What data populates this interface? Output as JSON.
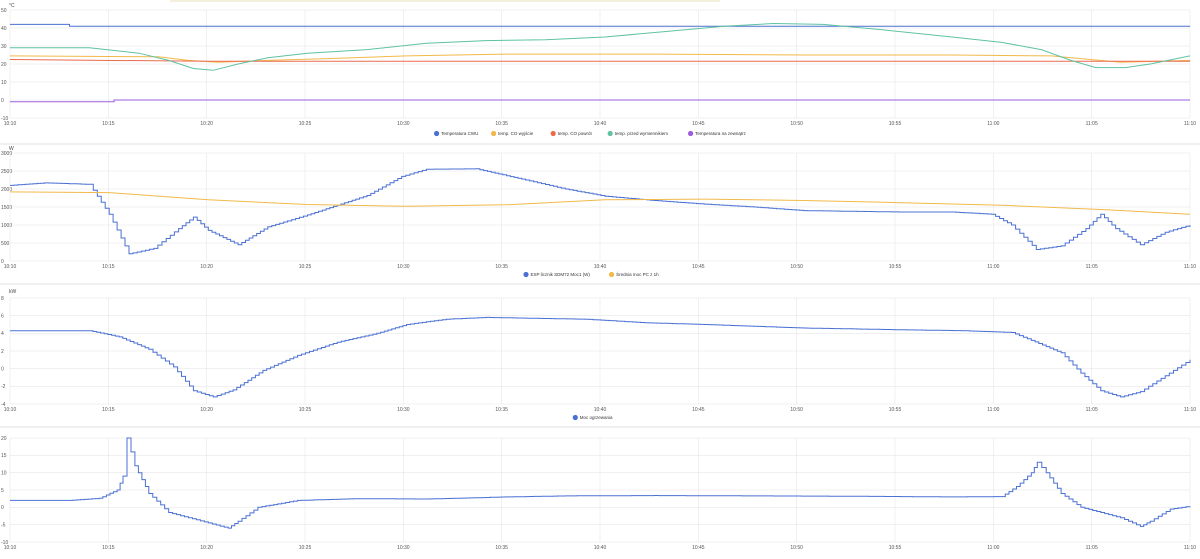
{
  "colors": {
    "blue": "#4b70d3",
    "orange": "#f2b94a",
    "red": "#ec6a4c",
    "teal": "#5fc2a1",
    "purple": "#9b5ce0"
  },
  "chart_data": [
    {
      "type": "line",
      "unit": "°C",
      "ylim": [
        -10,
        50
      ],
      "y_ticks": [
        "50",
        "40",
        "30",
        "20",
        "10",
        "0",
        "-10"
      ],
      "x_ticks": [
        "10:10",
        "10:15",
        "10:20",
        "10:25",
        "10:30",
        "10:35",
        "10:40",
        "10:45",
        "10:50",
        "10:55",
        "11:00",
        "11:05",
        "11:10"
      ],
      "grid": true,
      "legend": "bottom",
      "series": [
        {
          "name": "Temperatura CWU",
          "color": "#4b70d3",
          "step": true,
          "points": [
            [
              0,
              42
            ],
            [
              60,
              42
            ],
            [
              60,
              41
            ],
            [
              1190,
              41
            ]
          ]
        },
        {
          "name": "temp. CO wyjście",
          "color": "#f2b94a",
          "points": [
            [
              0,
              24.5
            ],
            [
              150,
              24
            ],
            [
              180,
              22
            ],
            [
              210,
              21
            ],
            [
              260,
              22
            ],
            [
              320,
              23
            ],
            [
              400,
              24.5
            ],
            [
              500,
              25.5
            ],
            [
              650,
              25.5
            ],
            [
              800,
              25
            ],
            [
              950,
              25
            ],
            [
              1050,
              24.5
            ],
            [
              1080,
              23
            ],
            [
              1120,
              21
            ],
            [
              1190,
              22
            ]
          ]
        },
        {
          "name": "temp. CO powrót",
          "color": "#ec6a4c",
          "points": [
            [
              0,
              22.5
            ],
            [
              200,
              21.5
            ],
            [
              400,
              21.5
            ],
            [
              700,
              21.5
            ],
            [
              1000,
              21.5
            ],
            [
              1190,
              21.5
            ]
          ]
        },
        {
          "name": "temp. przed wymiennikiem",
          "color": "#5fc2a1",
          "points": [
            [
              0,
              29
            ],
            [
              80,
              29
            ],
            [
              130,
              26
            ],
            [
              160,
              22
            ],
            [
              185,
              17.5
            ],
            [
              205,
              16.5
            ],
            [
              230,
              20
            ],
            [
              260,
              23.5
            ],
            [
              300,
              26
            ],
            [
              360,
              28
            ],
            [
              420,
              31.5
            ],
            [
              480,
              33
            ],
            [
              540,
              33.5
            ],
            [
              600,
              35
            ],
            [
              660,
              38
            ],
            [
              720,
              41
            ],
            [
              770,
              42.5
            ],
            [
              820,
              42
            ],
            [
              880,
              39
            ],
            [
              950,
              35
            ],
            [
              1000,
              32
            ],
            [
              1040,
              28
            ],
            [
              1070,
              22
            ],
            [
              1095,
              18
            ],
            [
              1125,
              18
            ],
            [
              1150,
              20
            ],
            [
              1190,
              24.5
            ]
          ]
        },
        {
          "name": "Temperatura na zewnątrz",
          "color": "#9b5ce0",
          "step": true,
          "points": [
            [
              0,
              -1
            ],
            [
              105,
              -1
            ],
            [
              105,
              0
            ],
            [
              1190,
              0
            ]
          ]
        }
      ]
    },
    {
      "type": "line",
      "unit": "W",
      "ylim": [
        0,
        3000
      ],
      "y_ticks": [
        "3000",
        "2500",
        "2000",
        "1500",
        "1000",
        "500",
        "0"
      ],
      "x_ticks": [
        "10:10",
        "10:15",
        "10:20",
        "10:25",
        "10:30",
        "10:35",
        "10:40",
        "10:45",
        "10:50",
        "10:55",
        "11:00",
        "11:05",
        "11:10"
      ],
      "grid": true,
      "legend": "bottom",
      "series": [
        {
          "name": "ESP licznik SDM72 Moc1 (W)",
          "color": "#4b70d3",
          "step": true,
          "points": [
            [
              0,
              2100
            ],
            [
              35,
              2170
            ],
            [
              80,
              2130
            ],
            [
              100,
              1300
            ],
            [
              120,
              200
            ],
            [
              145,
              350
            ],
            [
              170,
              900
            ],
            [
              185,
              1220
            ],
            [
              200,
              850
            ],
            [
              230,
              450
            ],
            [
              260,
              950
            ],
            [
              300,
              1280
            ],
            [
              330,
              1550
            ],
            [
              360,
              1820
            ],
            [
              395,
              2350
            ],
            [
              420,
              2550
            ],
            [
              470,
              2560
            ],
            [
              520,
              2250
            ],
            [
              560,
              2000
            ],
            [
              600,
              1800
            ],
            [
              650,
              1680
            ],
            [
              700,
              1580
            ],
            [
              750,
              1500
            ],
            [
              800,
              1400
            ],
            [
              850,
              1380
            ],
            [
              900,
              1360
            ],
            [
              950,
              1360
            ],
            [
              990,
              1300
            ],
            [
              1010,
              1000
            ],
            [
              1035,
              320
            ],
            [
              1060,
              420
            ],
            [
              1085,
              900
            ],
            [
              1100,
              1300
            ],
            [
              1115,
              900
            ],
            [
              1140,
              450
            ],
            [
              1165,
              800
            ],
            [
              1190,
              1000
            ]
          ]
        },
        {
          "name": "Średnia moc PC z 1h",
          "color": "#f2b94a",
          "points": [
            [
              0,
              1920
            ],
            [
              100,
              1900
            ],
            [
              200,
              1700
            ],
            [
              300,
              1570
            ],
            [
              400,
              1520
            ],
            [
              500,
              1560
            ],
            [
              600,
              1700
            ],
            [
              700,
              1720
            ],
            [
              800,
              1680
            ],
            [
              900,
              1620
            ],
            [
              1000,
              1550
            ],
            [
              1100,
              1430
            ],
            [
              1190,
              1300
            ]
          ]
        }
      ]
    },
    {
      "type": "line",
      "unit": "kW",
      "ylim": [
        -4,
        8
      ],
      "y_ticks": [
        "8",
        "6",
        "4",
        "2",
        "0",
        "-2",
        "-4"
      ],
      "x_ticks": [
        "10:10",
        "10:15",
        "10:20",
        "10:25",
        "10:30",
        "10:35",
        "10:40",
        "10:45",
        "10:50",
        "10:55",
        "11:00",
        "11:05",
        "11:10"
      ],
      "grid": true,
      "legend": "bottom",
      "series": [
        {
          "name": "Moc ogrzewania",
          "color": "#4b70d3",
          "step": true,
          "points": [
            [
              0,
              4.3
            ],
            [
              80,
              4.3
            ],
            [
              110,
              3.6
            ],
            [
              140,
              2.2
            ],
            [
              165,
              0.2
            ],
            [
              185,
              -2.5
            ],
            [
              205,
              -3.2
            ],
            [
              225,
              -2.4
            ],
            [
              255,
              -0.2
            ],
            [
              290,
              1.5
            ],
            [
              330,
              3
            ],
            [
              370,
              4
            ],
            [
              400,
              5
            ],
            [
              440,
              5.6
            ],
            [
              480,
              5.8
            ],
            [
              530,
              5.7
            ],
            [
              580,
              5.6
            ],
            [
              640,
              5.2
            ],
            [
              700,
              5
            ],
            [
              750,
              4.8
            ],
            [
              800,
              4.6
            ],
            [
              850,
              4.5
            ],
            [
              900,
              4.4
            ],
            [
              960,
              4.3
            ],
            [
              1010,
              4.1
            ],
            [
              1030,
              3.2
            ],
            [
              1060,
              1.8
            ],
            [
              1080,
              -0.5
            ],
            [
              1100,
              -2.5
            ],
            [
              1120,
              -3.2
            ],
            [
              1140,
              -2.6
            ],
            [
              1165,
              -0.8
            ],
            [
              1190,
              1
            ]
          ]
        }
      ]
    },
    {
      "type": "line",
      "unit": "",
      "ylim": [
        -10,
        20
      ],
      "y_ticks": [
        "20",
        "15",
        "10",
        "5",
        "0",
        "-5",
        "-10"
      ],
      "x_ticks": [
        "10:10",
        "10:15",
        "10:20",
        "10:25",
        "10:30",
        "10:35",
        "10:40",
        "10:45",
        "10:50",
        "10:55",
        "11:00",
        "11:05",
        "11:10"
      ],
      "grid": true,
      "legend": "bottom",
      "series": [
        {
          "name": "",
          "color": "#4b70d3",
          "step": true,
          "points": [
            [
              0,
              2
            ],
            [
              60,
              2
            ],
            [
              90,
              2.6
            ],
            [
              108,
              5
            ],
            [
              114,
              9
            ],
            [
              118,
              20
            ],
            [
              126,
              12
            ],
            [
              140,
              4
            ],
            [
              160,
              -1.5
            ],
            [
              180,
              -3
            ],
            [
              200,
              -4.5
            ],
            [
              220,
              -6
            ],
            [
              230,
              -4
            ],
            [
              250,
              0
            ],
            [
              290,
              2
            ],
            [
              350,
              2.5
            ],
            [
              420,
              2.4
            ],
            [
              500,
              3
            ],
            [
              560,
              3.3
            ],
            [
              650,
              3.4
            ],
            [
              750,
              3.3
            ],
            [
              850,
              3.2
            ],
            [
              950,
              3
            ],
            [
              1000,
              3.1
            ],
            [
              1015,
              6
            ],
            [
              1030,
              10
            ],
            [
              1036,
              13
            ],
            [
              1045,
              10
            ],
            [
              1060,
              4
            ],
            [
              1080,
              0
            ],
            [
              1100,
              -1.5
            ],
            [
              1120,
              -3
            ],
            [
              1140,
              -5.5
            ],
            [
              1150,
              -4
            ],
            [
              1170,
              -0.5
            ],
            [
              1190,
              0.3
            ]
          ]
        }
      ]
    }
  ]
}
